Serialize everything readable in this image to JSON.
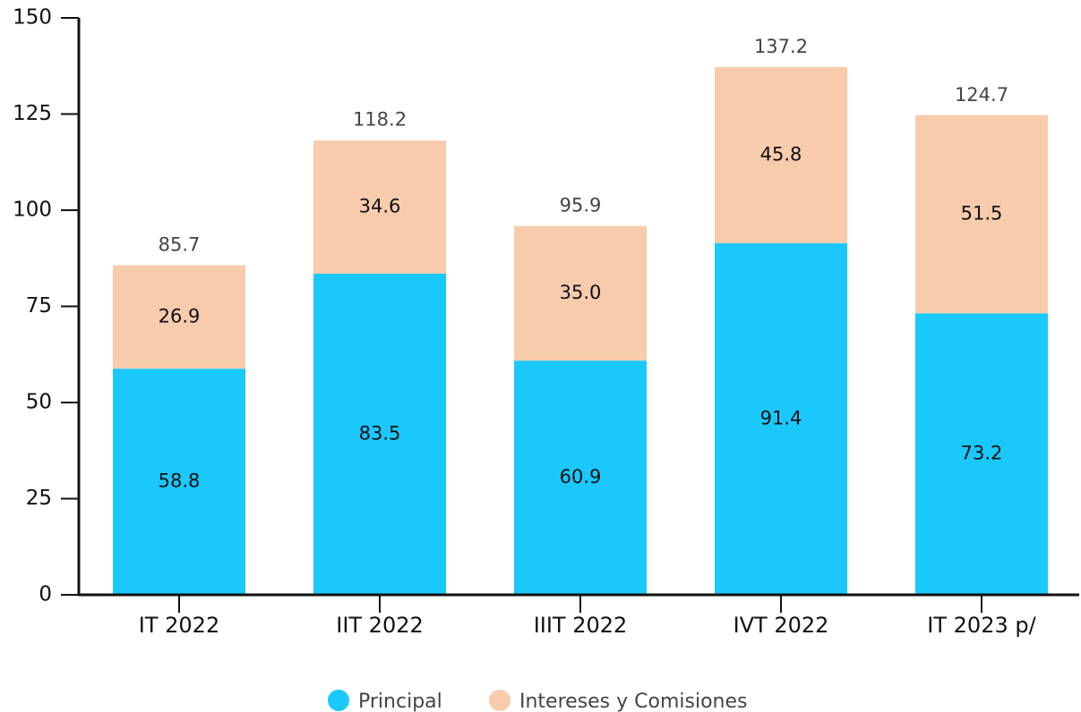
{
  "chart_data": {
    "type": "stacked_bar",
    "categories": [
      "IT 2022",
      "IIT 2022",
      "IIIT 2022",
      "IVT 2022",
      "IT 2023 p/"
    ],
    "series": [
      {
        "name": "Principal",
        "color": "#1ac8fc",
        "values": [
          58.8,
          83.5,
          60.9,
          91.4,
          73.2
        ]
      },
      {
        "name": "Intereses y Comisiones",
        "color": "#f7cbac",
        "values": [
          26.9,
          34.6,
          35,
          45.8,
          51.5
        ],
        "value_labels": [
          "26.9",
          "34.6",
          "35.0",
          "45.8",
          "51.5"
        ]
      }
    ],
    "totals": [
      85.7,
      118.2,
      95.9,
      137.2,
      124.7
    ],
    "ylim": [
      0,
      150
    ],
    "yticks": [
      0,
      25,
      50,
      75,
      100,
      125,
      150
    ],
    "grid": false,
    "legend": "bottom"
  }
}
